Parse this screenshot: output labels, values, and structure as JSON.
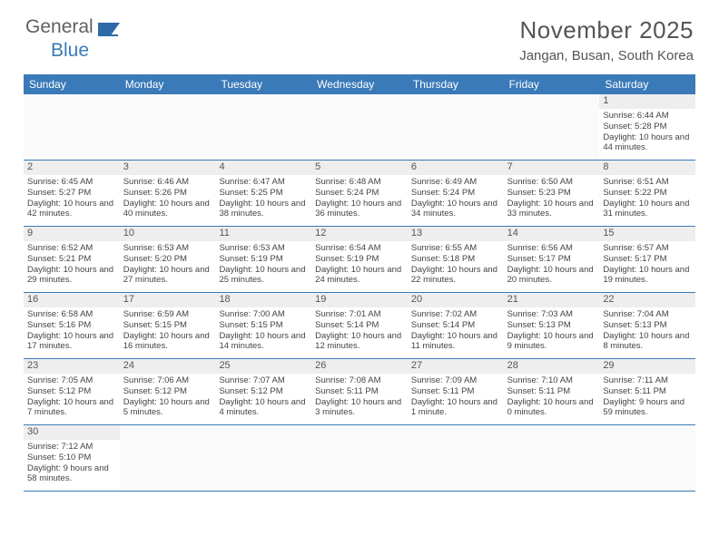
{
  "logo": {
    "general": "General",
    "blue": "Blue"
  },
  "header": {
    "title": "November 2025",
    "location": "Jangan, Busan, South Korea"
  },
  "header_bg": "#3a7ab8",
  "header_text": "#ffffff",
  "daynames": [
    "Sunday",
    "Monday",
    "Tuesday",
    "Wednesday",
    "Thursday",
    "Friday",
    "Saturday"
  ],
  "weeks": [
    [
      {
        "n": "",
        "empty": true
      },
      {
        "n": "",
        "empty": true
      },
      {
        "n": "",
        "empty": true
      },
      {
        "n": "",
        "empty": true
      },
      {
        "n": "",
        "empty": true
      },
      {
        "n": "",
        "empty": true
      },
      {
        "n": "1",
        "sr": "Sunrise: 6:44 AM",
        "ss": "Sunset: 5:28 PM",
        "dl": "Daylight: 10 hours and 44 minutes."
      }
    ],
    [
      {
        "n": "2",
        "sr": "Sunrise: 6:45 AM",
        "ss": "Sunset: 5:27 PM",
        "dl": "Daylight: 10 hours and 42 minutes."
      },
      {
        "n": "3",
        "sr": "Sunrise: 6:46 AM",
        "ss": "Sunset: 5:26 PM",
        "dl": "Daylight: 10 hours and 40 minutes."
      },
      {
        "n": "4",
        "sr": "Sunrise: 6:47 AM",
        "ss": "Sunset: 5:25 PM",
        "dl": "Daylight: 10 hours and 38 minutes."
      },
      {
        "n": "5",
        "sr": "Sunrise: 6:48 AM",
        "ss": "Sunset: 5:24 PM",
        "dl": "Daylight: 10 hours and 36 minutes."
      },
      {
        "n": "6",
        "sr": "Sunrise: 6:49 AM",
        "ss": "Sunset: 5:24 PM",
        "dl": "Daylight: 10 hours and 34 minutes."
      },
      {
        "n": "7",
        "sr": "Sunrise: 6:50 AM",
        "ss": "Sunset: 5:23 PM",
        "dl": "Daylight: 10 hours and 33 minutes."
      },
      {
        "n": "8",
        "sr": "Sunrise: 6:51 AM",
        "ss": "Sunset: 5:22 PM",
        "dl": "Daylight: 10 hours and 31 minutes."
      }
    ],
    [
      {
        "n": "9",
        "sr": "Sunrise: 6:52 AM",
        "ss": "Sunset: 5:21 PM",
        "dl": "Daylight: 10 hours and 29 minutes."
      },
      {
        "n": "10",
        "sr": "Sunrise: 6:53 AM",
        "ss": "Sunset: 5:20 PM",
        "dl": "Daylight: 10 hours and 27 minutes."
      },
      {
        "n": "11",
        "sr": "Sunrise: 6:53 AM",
        "ss": "Sunset: 5:19 PM",
        "dl": "Daylight: 10 hours and 25 minutes."
      },
      {
        "n": "12",
        "sr": "Sunrise: 6:54 AM",
        "ss": "Sunset: 5:19 PM",
        "dl": "Daylight: 10 hours and 24 minutes."
      },
      {
        "n": "13",
        "sr": "Sunrise: 6:55 AM",
        "ss": "Sunset: 5:18 PM",
        "dl": "Daylight: 10 hours and 22 minutes."
      },
      {
        "n": "14",
        "sr": "Sunrise: 6:56 AM",
        "ss": "Sunset: 5:17 PM",
        "dl": "Daylight: 10 hours and 20 minutes."
      },
      {
        "n": "15",
        "sr": "Sunrise: 6:57 AM",
        "ss": "Sunset: 5:17 PM",
        "dl": "Daylight: 10 hours and 19 minutes."
      }
    ],
    [
      {
        "n": "16",
        "sr": "Sunrise: 6:58 AM",
        "ss": "Sunset: 5:16 PM",
        "dl": "Daylight: 10 hours and 17 minutes."
      },
      {
        "n": "17",
        "sr": "Sunrise: 6:59 AM",
        "ss": "Sunset: 5:15 PM",
        "dl": "Daylight: 10 hours and 16 minutes."
      },
      {
        "n": "18",
        "sr": "Sunrise: 7:00 AM",
        "ss": "Sunset: 5:15 PM",
        "dl": "Daylight: 10 hours and 14 minutes."
      },
      {
        "n": "19",
        "sr": "Sunrise: 7:01 AM",
        "ss": "Sunset: 5:14 PM",
        "dl": "Daylight: 10 hours and 12 minutes."
      },
      {
        "n": "20",
        "sr": "Sunrise: 7:02 AM",
        "ss": "Sunset: 5:14 PM",
        "dl": "Daylight: 10 hours and 11 minutes."
      },
      {
        "n": "21",
        "sr": "Sunrise: 7:03 AM",
        "ss": "Sunset: 5:13 PM",
        "dl": "Daylight: 10 hours and 9 minutes."
      },
      {
        "n": "22",
        "sr": "Sunrise: 7:04 AM",
        "ss": "Sunset: 5:13 PM",
        "dl": "Daylight: 10 hours and 8 minutes."
      }
    ],
    [
      {
        "n": "23",
        "sr": "Sunrise: 7:05 AM",
        "ss": "Sunset: 5:12 PM",
        "dl": "Daylight: 10 hours and 7 minutes."
      },
      {
        "n": "24",
        "sr": "Sunrise: 7:06 AM",
        "ss": "Sunset: 5:12 PM",
        "dl": "Daylight: 10 hours and 5 minutes."
      },
      {
        "n": "25",
        "sr": "Sunrise: 7:07 AM",
        "ss": "Sunset: 5:12 PM",
        "dl": "Daylight: 10 hours and 4 minutes."
      },
      {
        "n": "26",
        "sr": "Sunrise: 7:08 AM",
        "ss": "Sunset: 5:11 PM",
        "dl": "Daylight: 10 hours and 3 minutes."
      },
      {
        "n": "27",
        "sr": "Sunrise: 7:09 AM",
        "ss": "Sunset: 5:11 PM",
        "dl": "Daylight: 10 hours and 1 minute."
      },
      {
        "n": "28",
        "sr": "Sunrise: 7:10 AM",
        "ss": "Sunset: 5:11 PM",
        "dl": "Daylight: 10 hours and 0 minutes."
      },
      {
        "n": "29",
        "sr": "Sunrise: 7:11 AM",
        "ss": "Sunset: 5:11 PM",
        "dl": "Daylight: 9 hours and 59 minutes."
      }
    ],
    [
      {
        "n": "30",
        "sr": "Sunrise: 7:12 AM",
        "ss": "Sunset: 5:10 PM",
        "dl": "Daylight: 9 hours and 58 minutes."
      },
      {
        "n": "",
        "empty": true
      },
      {
        "n": "",
        "empty": true
      },
      {
        "n": "",
        "empty": true
      },
      {
        "n": "",
        "empty": true
      },
      {
        "n": "",
        "empty": true
      },
      {
        "n": "",
        "empty": true
      }
    ]
  ]
}
